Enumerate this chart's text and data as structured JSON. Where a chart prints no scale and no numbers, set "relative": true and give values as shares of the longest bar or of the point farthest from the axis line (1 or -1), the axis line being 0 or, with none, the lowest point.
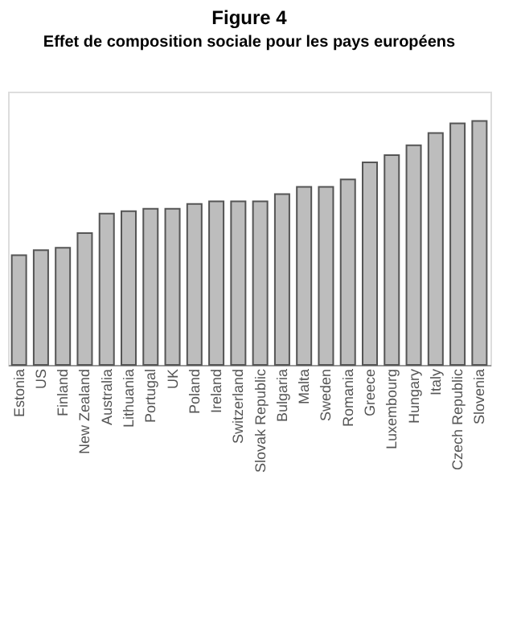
{
  "chart_data": {
    "type": "bar",
    "title": "Figure 4",
    "subtitle": "Effet de composition sociale pour les pays européens",
    "categories": [
      "Estonia",
      "US",
      "Finland",
      "New Zealand",
      "Australia",
      "Lithuania",
      "Portugal",
      "UK",
      "Poland",
      "Ireland",
      "Switzerland",
      "Slovak Republic",
      "Bulgaria",
      "Malta",
      "Sweden",
      "Romania",
      "Greece",
      "Luxembourg",
      "Hungary",
      "Italy",
      "Czech Republic",
      "Slovenia"
    ],
    "values": [
      0.45,
      0.47,
      0.48,
      0.54,
      0.62,
      0.63,
      0.64,
      0.64,
      0.66,
      0.67,
      0.67,
      0.67,
      0.7,
      0.73,
      0.73,
      0.76,
      0.83,
      0.86,
      0.9,
      0.95,
      0.99,
      1.0
    ],
    "color": "#bdbdbd",
    "relative": true
  }
}
